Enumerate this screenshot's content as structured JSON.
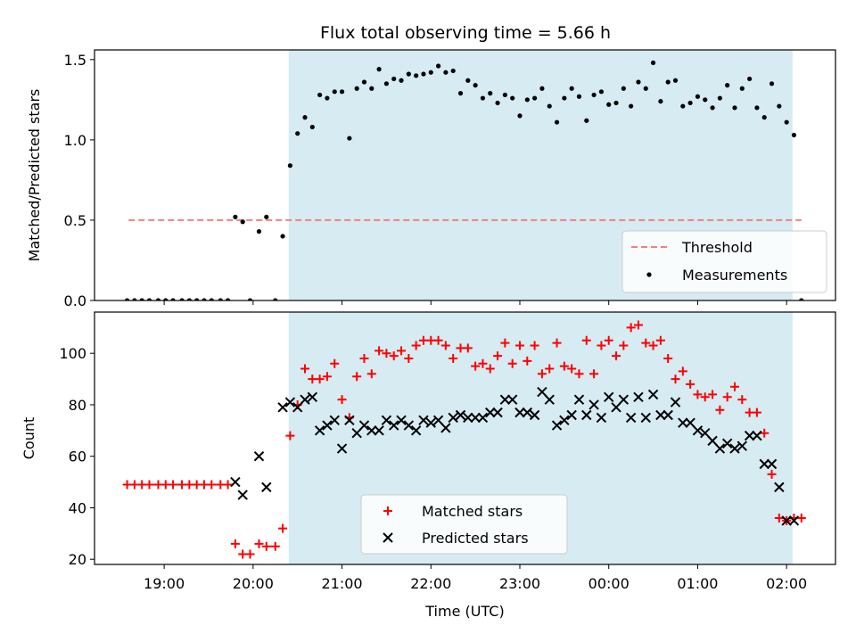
{
  "title": "Flux total observing time = 5.66 h",
  "colors": {
    "shade": "#add8e6",
    "threshold": "#f08080",
    "measurement": "#000000",
    "matched": "#ff0000",
    "predicted": "#000000"
  },
  "chart_data": [
    {
      "type": "scatter",
      "ylabel": "Matched/Predicted stars",
      "xlabel": "",
      "xlim": [
        "18:13",
        "02:33"
      ],
      "ylim": [
        0,
        1.56
      ],
      "yticks": [
        "0.0",
        "0.5",
        "1.0",
        "1.5"
      ],
      "shaded_span": [
        "20:24",
        "02:04"
      ],
      "threshold": {
        "label": "Threshold",
        "value": 0.5,
        "x": [
          "18:36",
          "02:10"
        ]
      },
      "legend": {
        "placement": "lower right",
        "entries": [
          "Threshold",
          "Measurements"
        ]
      },
      "series": [
        {
          "name": "Measurements",
          "x": [
            "18:35",
            "18:40",
            "18:45",
            "18:50",
            "18:56",
            "19:01",
            "19:06",
            "19:12",
            "19:17",
            "19:22",
            "19:27",
            "19:32",
            "19:38",
            "19:43",
            "19:48",
            "19:53",
            "19:58",
            "20:04",
            "20:09",
            "20:15",
            "20:20",
            "20:25",
            "20:30",
            "20:35",
            "20:40",
            "20:45",
            "20:50",
            "20:55",
            "21:00",
            "21:05",
            "21:10",
            "21:15",
            "21:20",
            "21:25",
            "21:30",
            "21:35",
            "21:40",
            "21:45",
            "21:50",
            "21:55",
            "22:00",
            "22:05",
            "22:10",
            "22:15",
            "22:20",
            "22:25",
            "22:30",
            "22:35",
            "22:40",
            "22:45",
            "22:50",
            "22:55",
            "23:00",
            "23:05",
            "23:10",
            "23:15",
            "23:20",
            "23:25",
            "23:30",
            "23:35",
            "23:40",
            "23:45",
            "23:50",
            "23:55",
            "00:00",
            "00:05",
            "00:10",
            "00:15",
            "00:20",
            "00:25",
            "00:30",
            "00:35",
            "00:40",
            "00:45",
            "00:50",
            "00:55",
            "01:00",
            "01:05",
            "01:10",
            "01:15",
            "01:20",
            "01:25",
            "01:30",
            "01:35",
            "01:40",
            "01:45",
            "01:50",
            "01:55",
            "02:00",
            "02:05",
            "02:10"
          ],
          "y": [
            0,
            0,
            0,
            0,
            0,
            0,
            0,
            0,
            0,
            0,
            0,
            0,
            0,
            0,
            0.52,
            0.49,
            0,
            0.43,
            0.52,
            0,
            0.4,
            0.84,
            1.04,
            1.14,
            1.08,
            1.28,
            1.26,
            1.3,
            1.3,
            1.01,
            1.32,
            1.36,
            1.32,
            1.44,
            1.35,
            1.38,
            1.37,
            1.41,
            1.4,
            1.41,
            1.42,
            1.46,
            1.42,
            1.43,
            1.29,
            1.37,
            1.34,
            1.26,
            1.29,
            1.23,
            1.28,
            1.26,
            1.15,
            1.25,
            1.26,
            1.32,
            1.21,
            1.11,
            1.26,
            1.32,
            1.27,
            1.12,
            1.28,
            1.3,
            1.22,
            1.23,
            1.32,
            1.21,
            1.36,
            1.32,
            1.48,
            1.24,
            1.36,
            1.37,
            1.21,
            1.23,
            1.27,
            1.25,
            1.2,
            1.26,
            1.34,
            1.2,
            1.32,
            1.38,
            1.2,
            1.14,
            1.35,
            1.21,
            1.11,
            1.03,
            0
          ]
        }
      ]
    },
    {
      "type": "scatter",
      "ylabel": "Count",
      "xlabel": "Time (UTC)",
      "xlim": [
        "18:13",
        "02:33"
      ],
      "ylim": [
        18,
        116
      ],
      "yticks": [
        "20",
        "40",
        "60",
        "80",
        "100"
      ],
      "xticks": [
        "19:00",
        "20:00",
        "21:00",
        "22:00",
        "23:00",
        "00:00",
        "01:00",
        "02:00"
      ],
      "shaded_span": [
        "20:24",
        "02:04"
      ],
      "legend": {
        "placement": "lower center",
        "entries": [
          "Matched stars",
          "Predicted stars"
        ]
      },
      "series": [
        {
          "name": "Matched stars",
          "x": [
            "18:35",
            "18:40",
            "18:45",
            "18:50",
            "18:56",
            "19:01",
            "19:06",
            "19:12",
            "19:17",
            "19:22",
            "19:27",
            "19:32",
            "19:38",
            "19:43",
            "19:48",
            "19:53",
            "19:58",
            "20:04",
            "20:09",
            "20:15",
            "20:20",
            "20:25",
            "20:30",
            "20:35",
            "20:40",
            "20:45",
            "20:50",
            "20:55",
            "21:00",
            "21:05",
            "21:10",
            "21:15",
            "21:20",
            "21:25",
            "21:30",
            "21:35",
            "21:40",
            "21:45",
            "21:50",
            "21:55",
            "22:00",
            "22:05",
            "22:10",
            "22:15",
            "22:20",
            "22:25",
            "22:30",
            "22:35",
            "22:40",
            "22:45",
            "22:50",
            "22:55",
            "23:00",
            "23:05",
            "23:10",
            "23:15",
            "23:20",
            "23:25",
            "23:30",
            "23:35",
            "23:40",
            "23:45",
            "23:50",
            "23:55",
            "00:00",
            "00:05",
            "00:10",
            "00:15",
            "00:20",
            "00:25",
            "00:30",
            "00:35",
            "00:40",
            "00:45",
            "00:50",
            "00:55",
            "01:00",
            "01:05",
            "01:10",
            "01:15",
            "01:20",
            "01:25",
            "01:30",
            "01:35",
            "01:40",
            "01:45",
            "01:50",
            "01:55",
            "02:00",
            "02:05",
            "02:10"
          ],
          "y": [
            49,
            49,
            49,
            49,
            49,
            49,
            49,
            49,
            49,
            49,
            49,
            49,
            49,
            49,
            26,
            22,
            22,
            26,
            25,
            25,
            32,
            68,
            80,
            94,
            90,
            90,
            91,
            96,
            82,
            75,
            91,
            98,
            92,
            101,
            100,
            99,
            101,
            98,
            103,
            105,
            105,
            105,
            103,
            98,
            102,
            102,
            95,
            96,
            94,
            99,
            104,
            96,
            103,
            97,
            103,
            92,
            94,
            104,
            95,
            94,
            92,
            105,
            92,
            103,
            105,
            99,
            103,
            110,
            111,
            104,
            103,
            105,
            98,
            90,
            93,
            88,
            84,
            83,
            84,
            78,
            83,
            87,
            82,
            77,
            77,
            69,
            53,
            36,
            35,
            36,
            36
          ]
        },
        {
          "name": "Predicted stars",
          "x": [
            "19:48",
            "19:53",
            "20:04",
            "20:09",
            "20:20",
            "20:25",
            "20:30",
            "20:35",
            "20:40",
            "20:45",
            "20:50",
            "20:55",
            "21:00",
            "21:05",
            "21:10",
            "21:15",
            "21:20",
            "21:25",
            "21:30",
            "21:35",
            "21:40",
            "21:45",
            "21:50",
            "21:55",
            "22:00",
            "22:05",
            "22:10",
            "22:15",
            "22:20",
            "22:25",
            "22:30",
            "22:35",
            "22:40",
            "22:45",
            "22:50",
            "22:55",
            "23:00",
            "23:05",
            "23:10",
            "23:15",
            "23:20",
            "23:25",
            "23:30",
            "23:35",
            "23:40",
            "23:45",
            "23:50",
            "23:55",
            "00:00",
            "00:05",
            "00:10",
            "00:15",
            "00:20",
            "00:25",
            "00:30",
            "00:35",
            "00:40",
            "00:45",
            "00:50",
            "00:55",
            "01:00",
            "01:05",
            "01:10",
            "01:15",
            "01:20",
            "01:25",
            "01:30",
            "01:35",
            "01:40",
            "01:45",
            "01:50",
            "01:55",
            "02:00",
            "02:05"
          ],
          "y": [
            50,
            45,
            60,
            48,
            79,
            81,
            79,
            82,
            83,
            70,
            72,
            74,
            63,
            74,
            69,
            72,
            70,
            70,
            74,
            72,
            74,
            72,
            70,
            74,
            73,
            74,
            71,
            75,
            76,
            75,
            75,
            75,
            77,
            77,
            82,
            82,
            77,
            77,
            76,
            85,
            82,
            72,
            74,
            76,
            82,
            76,
            80,
            75,
            83,
            79,
            82,
            75,
            83,
            75,
            84,
            76,
            76,
            81,
            73,
            73,
            70,
            69,
            66,
            63,
            65,
            63,
            64,
            68,
            68,
            57,
            57,
            48,
            35,
            35
          ]
        }
      ]
    }
  ]
}
